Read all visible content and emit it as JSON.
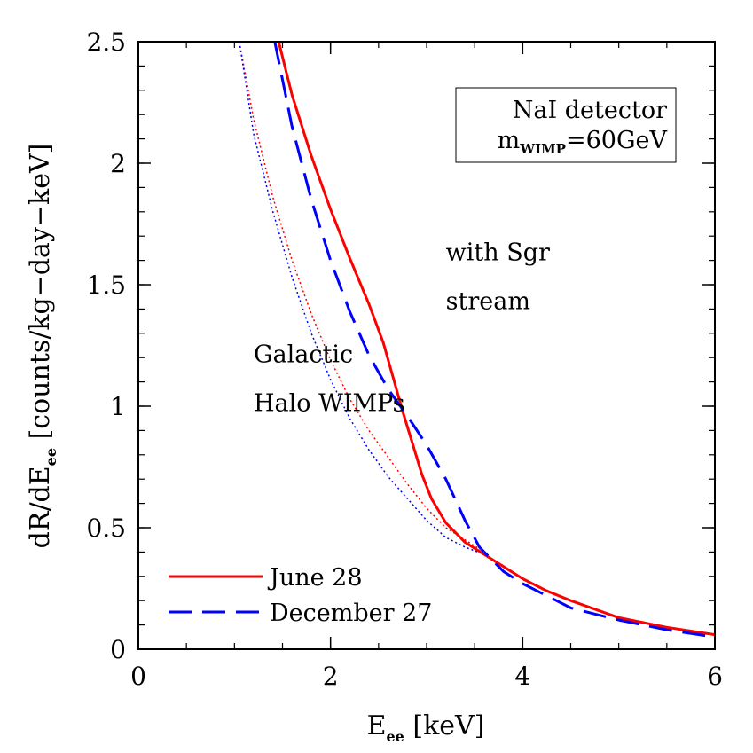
{
  "chart_data": {
    "type": "line",
    "title": "",
    "xlabel": {
      "base": "E",
      "sub": "ee",
      "rest": " [keV]"
    },
    "ylabel": {
      "pre": "dR/dE",
      "sub": "ee",
      "rest": " [counts/kg−day−keV]"
    },
    "xlim": [
      0,
      6
    ],
    "ylim": [
      0,
      2.5
    ],
    "xticks": [
      {
        "value": 0,
        "label": "0"
      },
      {
        "value": 2,
        "label": "2"
      },
      {
        "value": 4,
        "label": "4"
      },
      {
        "value": 6,
        "label": "6"
      }
    ],
    "yticks": [
      {
        "value": 0,
        "label": "0"
      },
      {
        "value": 0.5,
        "label": "0.5"
      },
      {
        "value": 1,
        "label": "1"
      },
      {
        "value": 1.5,
        "label": "1.5"
      },
      {
        "value": 2,
        "label": "2"
      },
      {
        "value": 2.5,
        "label": "2.5"
      }
    ],
    "xminor_step": 0.5,
    "yminor_step": 0.1,
    "box": {
      "line1": "NaI detector",
      "line2_base": "m",
      "line2_sub": "WIMP",
      "line2_rest": "=60GeV"
    },
    "annotations": [
      {
        "id": "with-sgr",
        "text": "with Sgr",
        "x": 3.2,
        "y": 1.6
      },
      {
        "id": "stream",
        "text": "stream",
        "x": 3.2,
        "y": 1.4
      },
      {
        "id": "galactic",
        "text": "Galactic",
        "x": 1.2,
        "y": 1.18
      },
      {
        "id": "halo-wimps",
        "text": "Halo WIMPs",
        "x": 1.2,
        "y": 0.98
      }
    ],
    "legend_position": "bottom-left",
    "series": [
      {
        "name": "June 28",
        "color": "#ff0000",
        "style": "solid",
        "x": [
          1.46,
          1.6,
          1.8,
          2.0,
          2.2,
          2.4,
          2.55,
          2.65,
          2.75,
          2.85,
          2.95,
          3.05,
          3.2,
          3.4,
          3.6,
          3.8,
          4.0,
          4.25,
          4.5,
          5.0,
          5.5,
          6.0
        ],
        "y": [
          2.5,
          2.28,
          2.03,
          1.81,
          1.61,
          1.42,
          1.26,
          1.12,
          0.98,
          0.85,
          0.72,
          0.62,
          0.52,
          0.44,
          0.39,
          0.34,
          0.29,
          0.24,
          0.2,
          0.13,
          0.09,
          0.06
        ]
      },
      {
        "name": "December 27",
        "color": "#0000ff",
        "style": "dashed",
        "x": [
          1.42,
          1.6,
          1.8,
          2.0,
          2.2,
          2.4,
          2.6,
          2.8,
          3.0,
          3.2,
          3.4,
          3.55,
          3.6,
          3.8,
          4.0,
          4.5,
          5.0,
          5.5,
          6.0
        ],
        "y": [
          2.5,
          2.15,
          1.85,
          1.6,
          1.39,
          1.21,
          1.07,
          0.96,
          0.84,
          0.7,
          0.53,
          0.42,
          0.4,
          0.32,
          0.27,
          0.17,
          0.12,
          0.08,
          0.05
        ]
      },
      {
        "color": "#ff0000",
        "style": "dotted",
        "x": [
          1.05,
          1.2,
          1.4,
          1.6,
          1.8,
          2.0,
          2.2,
          2.4,
          2.6,
          2.8,
          3.0,
          3.2,
          3.4,
          3.6
        ],
        "y": [
          2.5,
          2.18,
          1.86,
          1.6,
          1.38,
          1.19,
          1.03,
          0.9,
          0.79,
          0.68,
          0.58,
          0.5,
          0.45,
          0.4
        ]
      },
      {
        "color": "#0000ff",
        "style": "dotted",
        "x": [
          1.05,
          1.2,
          1.4,
          1.6,
          1.8,
          2.0,
          2.2,
          2.4,
          2.6,
          2.8,
          3.0,
          3.2,
          3.4,
          3.6
        ],
        "y": [
          2.5,
          2.12,
          1.8,
          1.53,
          1.3,
          1.11,
          0.95,
          0.82,
          0.71,
          0.62,
          0.53,
          0.46,
          0.42,
          0.39
        ]
      }
    ]
  }
}
